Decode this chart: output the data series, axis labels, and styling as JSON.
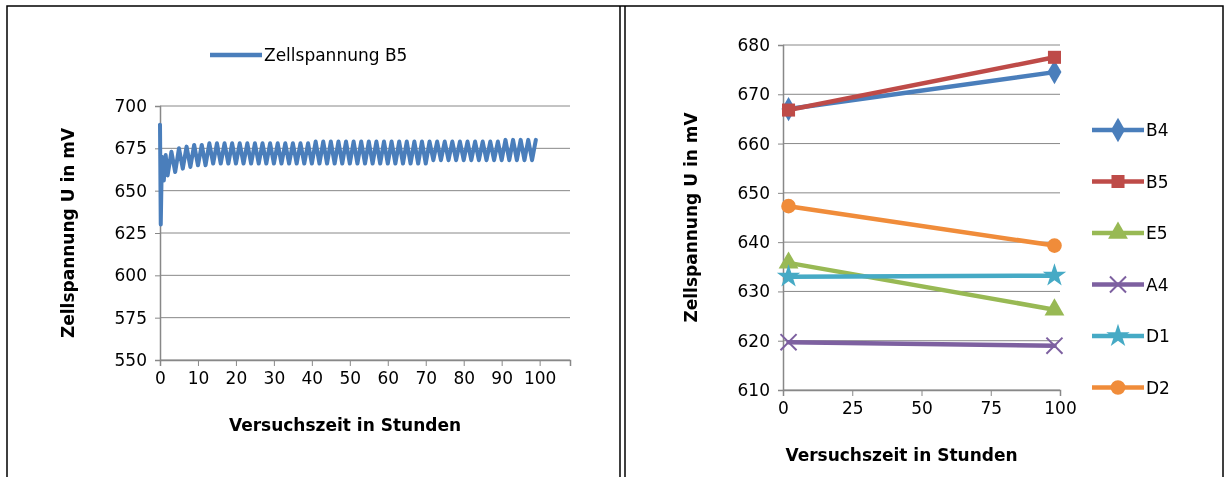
{
  "chart_data": [
    {
      "type": "line",
      "xlabel": "Versuchszeit in Stunden",
      "ylabel": "Zellspannung U in mV",
      "xlim": [
        0,
        108
      ],
      "xticks": [
        0,
        10,
        20,
        30,
        40,
        50,
        60,
        70,
        80,
        90,
        100
      ],
      "ylim": [
        550,
        700
      ],
      "yticks": [
        550,
        575,
        600,
        625,
        650,
        675,
        700
      ],
      "grid": "y",
      "legend": "top",
      "marker": "none",
      "line_style": "solid",
      "series": [
        {
          "name": "Zellspannung B5",
          "color": "#4a7ebb",
          "x": [
            0,
            0.2,
            0.5,
            1,
            1.5,
            2,
            3,
            4,
            5,
            6,
            7,
            8,
            9,
            10,
            11,
            12,
            13,
            14,
            15,
            16,
            17,
            18,
            19,
            20,
            21,
            22,
            23,
            24,
            25,
            26,
            27,
            28,
            29,
            30,
            31,
            32,
            33,
            34,
            35,
            36,
            37,
            38,
            39,
            40,
            41,
            42,
            43,
            44,
            45,
            46,
            47,
            48,
            49,
            50,
            51,
            52,
            53,
            54,
            55,
            56,
            57,
            58,
            59,
            60,
            61,
            62,
            63,
            64,
            65,
            66,
            67,
            68,
            69,
            70,
            71,
            72,
            73,
            74,
            75,
            76,
            77,
            78,
            79,
            80,
            81,
            82,
            83,
            84,
            85,
            86,
            87,
            88,
            89,
            90,
            91,
            92,
            93,
            94,
            95,
            96,
            97,
            98,
            99
          ],
          "values": [
            689,
            630,
            670,
            656,
            671,
            659,
            673,
            661,
            675,
            663,
            676,
            664,
            677,
            665,
            677,
            665,
            678,
            666,
            678,
            666,
            678,
            666,
            678,
            666,
            678,
            666,
            678,
            666,
            678,
            666,
            678,
            666,
            678,
            666,
            678,
            666,
            678,
            666,
            678,
            666,
            678,
            666,
            678,
            666,
            679,
            666,
            679,
            666,
            679,
            666,
            679,
            666,
            679,
            666,
            679,
            666,
            679,
            666,
            679,
            666,
            679,
            666,
            679,
            666,
            679,
            666,
            679,
            666,
            679,
            666,
            679,
            666,
            679,
            666,
            679,
            668,
            679,
            668,
            679,
            668,
            679,
            668,
            679,
            668,
            679,
            668,
            679,
            668,
            679,
            668,
            679,
            668,
            679,
            668,
            680,
            668,
            680,
            668,
            680,
            668,
            680,
            668,
            680
          ]
        }
      ]
    },
    {
      "type": "line",
      "xlabel": "Versuchszeit in Stunden",
      "ylabel": "Zellspannung U in mV",
      "x": [
        2,
        98
      ],
      "xlim": [
        0,
        100
      ],
      "xticks": [
        0,
        25,
        50,
        75,
        100
      ],
      "ylim": [
        610,
        680
      ],
      "yticks": [
        610,
        620,
        630,
        640,
        650,
        660,
        670,
        680
      ],
      "grid": "y",
      "legend": "right",
      "line_style": "solid",
      "series": [
        {
          "name": "B4",
          "color": "#4a7ebb",
          "marker": "diamond",
          "values": [
            667,
            674.5
          ]
        },
        {
          "name": "B5",
          "color": "#be4b48",
          "marker": "square",
          "values": [
            666.8,
            677.5
          ]
        },
        {
          "name": "E5",
          "color": "#98b954",
          "marker": "triangle",
          "values": [
            635.8,
            626.3
          ]
        },
        {
          "name": "A4",
          "color": "#7d60a0",
          "marker": "cross",
          "values": [
            619.7,
            619
          ]
        },
        {
          "name": "D1",
          "color": "#46aac5",
          "marker": "star",
          "values": [
            633,
            633.2
          ]
        },
        {
          "name": "D2",
          "color": "#f08c3a",
          "marker": "circle",
          "values": [
            647.3,
            639.3
          ]
        }
      ]
    }
  ]
}
